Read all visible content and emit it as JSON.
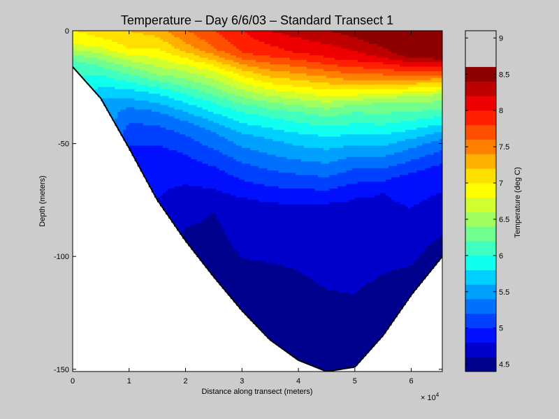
{
  "chart_data": {
    "type": "heatmap",
    "subtype": "filled-contour",
    "title": "Temperature – Day 6/6/03 – Standard Transect 1",
    "xlabel": "Distance along transect (meters)",
    "ylabel": "Depth (meters)",
    "x_multiplier_label": "× 10",
    "x_multiplier_exponent": "4",
    "xlim": [
      0,
      65500
    ],
    "ylim": [
      -151,
      0
    ],
    "x_ticks": [
      0,
      10000,
      20000,
      30000,
      40000,
      50000,
      60000
    ],
    "x_tick_labels": [
      "0",
      "1",
      "2",
      "3",
      "4",
      "5",
      "6"
    ],
    "y_ticks": [
      0,
      -50,
      -100,
      -150
    ],
    "y_tick_labels": [
      "0",
      "-50",
      "-100",
      "-150"
    ],
    "grid": false,
    "colorbar": {
      "label": "Temperature (deg C)",
      "placement": "right",
      "range": [
        4.4,
        9.1
      ],
      "levels": [
        4.4,
        4.6,
        4.8,
        5.0,
        5.2,
        5.4,
        5.6,
        5.8,
        6.0,
        6.2,
        6.4,
        6.6,
        6.8,
        7.0,
        7.2,
        7.4,
        7.6,
        7.8,
        8.0,
        8.2,
        8.4,
        8.6,
        8.8,
        9.1
      ],
      "ticks": [
        4.5,
        5,
        5.5,
        6,
        6.5,
        7,
        7.5,
        8,
        8.5,
        9
      ],
      "tick_labels": [
        "4.5",
        "5",
        "5.5",
        "6",
        "6.5",
        "7",
        "7.5",
        "8",
        "8.5",
        "9"
      ],
      "colors": [
        "#00008f",
        "#0000cc",
        "#0010ff",
        "#0040ff",
        "#0070ff",
        "#00a0ff",
        "#00d0ff",
        "#10ffef",
        "#40ffbf",
        "#70ff8f",
        "#a0ff60",
        "#cfff30",
        "#ffff00",
        "#ffdf00",
        "#ffb000",
        "#ff8000",
        "#ff5000",
        "#ff2000",
        "#ef0000",
        "#bf0000",
        "#8f0000"
      ]
    },
    "bathymetry": {
      "x": [
        0,
        5000,
        10000,
        15000,
        20000,
        25000,
        30000,
        35000,
        40000,
        45000,
        50000,
        55000,
        60000,
        65500
      ],
      "depth": [
        -16,
        -30,
        -52,
        -75,
        -93,
        -109,
        -124,
        -137,
        -146,
        -151,
        -149,
        -135,
        -117,
        -100
      ]
    },
    "temperature_columns": {
      "x": [
        0,
        5000,
        10000,
        15000,
        20000,
        25000,
        30000,
        35000,
        40000,
        45000,
        50000,
        55000,
        60000,
        65500
      ],
      "profiles": [
        [
          [
            0,
            7.0
          ],
          [
            -6,
            6.8
          ],
          [
            -12,
            6.3
          ],
          [
            -16,
            6.0
          ]
        ],
        [
          [
            0,
            7.1
          ],
          [
            -6,
            6.9
          ],
          [
            -14,
            6.3
          ],
          [
            -22,
            5.9
          ],
          [
            -30,
            5.6
          ]
        ],
        [
          [
            0,
            7.2
          ],
          [
            -8,
            7.0
          ],
          [
            -16,
            6.4
          ],
          [
            -26,
            5.8
          ],
          [
            -36,
            5.3
          ],
          [
            -50,
            5.0
          ]
        ],
        [
          [
            0,
            7.3
          ],
          [
            -8,
            7.0
          ],
          [
            -18,
            6.5
          ],
          [
            -28,
            5.8
          ],
          [
            -38,
            5.3
          ],
          [
            -55,
            4.9
          ],
          [
            -75,
            4.8
          ]
        ],
        [
          [
            0,
            7.6
          ],
          [
            -8,
            7.3
          ],
          [
            -18,
            6.6
          ],
          [
            -30,
            5.9
          ],
          [
            -42,
            5.3
          ],
          [
            -55,
            5.0
          ],
          [
            -75,
            4.7
          ],
          [
            -93,
            4.55
          ]
        ],
        [
          [
            0,
            7.8
          ],
          [
            -8,
            7.6
          ],
          [
            -18,
            6.8
          ],
          [
            -32,
            6.0
          ],
          [
            -45,
            5.4
          ],
          [
            -60,
            5.0
          ],
          [
            -80,
            4.6
          ],
          [
            -109,
            4.5
          ]
        ],
        [
          [
            0,
            8.0
          ],
          [
            -10,
            7.8
          ],
          [
            -20,
            7.0
          ],
          [
            -34,
            6.1
          ],
          [
            -48,
            5.5
          ],
          [
            -62,
            5.1
          ],
          [
            -78,
            4.7
          ],
          [
            -124,
            4.5
          ]
        ],
        [
          [
            0,
            8.2
          ],
          [
            -10,
            7.9
          ],
          [
            -22,
            7.1
          ],
          [
            -36,
            6.1
          ],
          [
            -48,
            5.6
          ],
          [
            -62,
            5.2
          ],
          [
            -80,
            4.7
          ],
          [
            -137,
            4.45
          ]
        ],
        [
          [
            0,
            8.3
          ],
          [
            -10,
            8.0
          ],
          [
            -22,
            7.2
          ],
          [
            -36,
            6.2
          ],
          [
            -48,
            5.7
          ],
          [
            -62,
            5.25
          ],
          [
            -80,
            4.7
          ],
          [
            -146,
            4.45
          ]
        ],
        [
          [
            0,
            8.4
          ],
          [
            -12,
            8.0
          ],
          [
            -22,
            7.3
          ],
          [
            -36,
            6.3
          ],
          [
            -48,
            5.75
          ],
          [
            -62,
            5.3
          ],
          [
            -78,
            4.75
          ],
          [
            -151,
            4.45
          ]
        ],
        [
          [
            0,
            8.5
          ],
          [
            -12,
            8.1
          ],
          [
            -22,
            7.4
          ],
          [
            -34,
            6.3
          ],
          [
            -46,
            5.8
          ],
          [
            -58,
            5.3
          ],
          [
            -74,
            4.8
          ],
          [
            -149,
            4.45
          ]
        ],
        [
          [
            0,
            8.7
          ],
          [
            -12,
            8.2
          ],
          [
            -22,
            7.4
          ],
          [
            -32,
            6.4
          ],
          [
            -44,
            5.9
          ],
          [
            -56,
            5.4
          ],
          [
            -72,
            4.8
          ],
          [
            -135,
            4.45
          ]
        ],
        [
          [
            0,
            9.0
          ],
          [
            -10,
            8.6
          ],
          [
            -20,
            7.6
          ],
          [
            -30,
            6.5
          ],
          [
            -40,
            6.0
          ],
          [
            -52,
            5.4
          ],
          [
            -66,
            4.9
          ],
          [
            -117,
            4.5
          ]
        ],
        [
          [
            0,
            9.0
          ],
          [
            -10,
            8.7
          ],
          [
            -18,
            7.8
          ],
          [
            -28,
            6.6
          ],
          [
            -38,
            6.0
          ],
          [
            -50,
            5.3
          ],
          [
            -62,
            4.9
          ],
          [
            -100,
            4.5
          ]
        ]
      ]
    }
  }
}
